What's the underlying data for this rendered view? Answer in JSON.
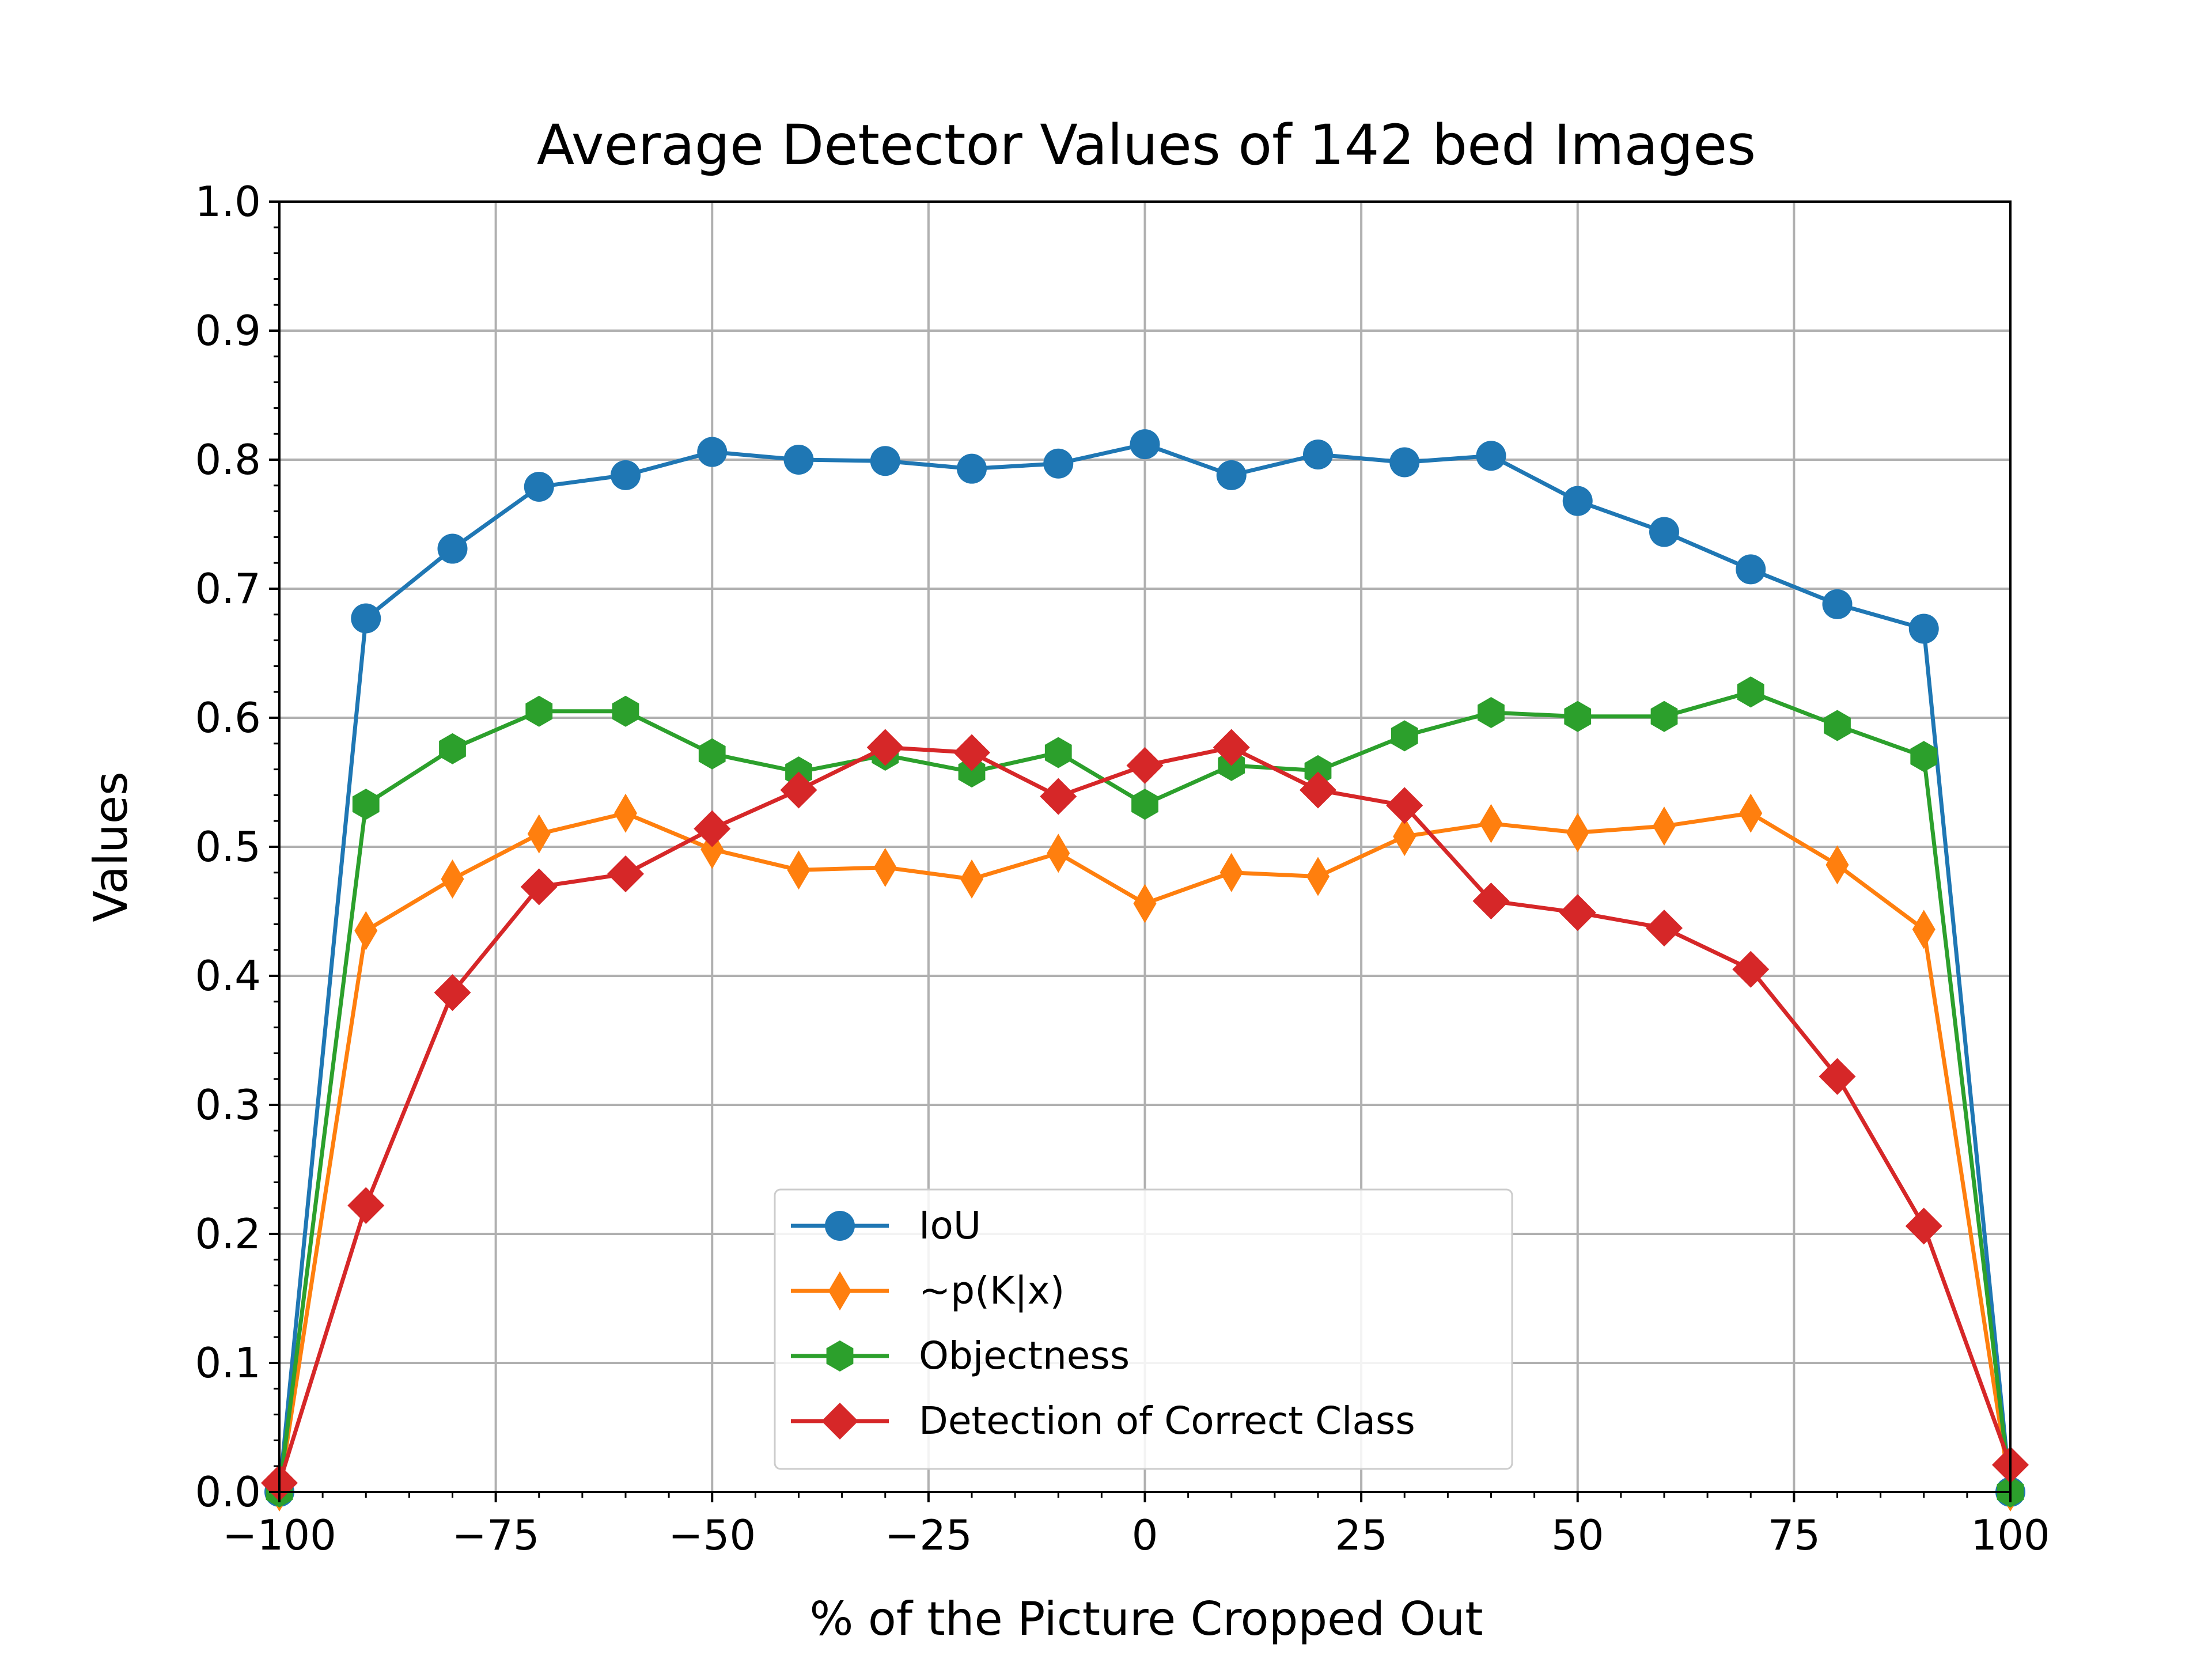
{
  "chart_data": {
    "type": "line",
    "title": "Average Detector Values of 142 bed Images",
    "xlabel": "% of the Picture Cropped Out",
    "ylabel": "Values",
    "xlim": [
      -100,
      100
    ],
    "ylim": [
      0.0,
      1.0
    ],
    "grid": true,
    "legend_position": "bottom-center",
    "x_ticks": [
      -100,
      -75,
      -50,
      -25,
      0,
      25,
      50,
      75,
      100
    ],
    "x_tick_labels": [
      "−100",
      "−75",
      "−50",
      "−25",
      "0",
      "25",
      "50",
      "75",
      "100"
    ],
    "y_ticks": [
      0.0,
      0.1,
      0.2,
      0.3,
      0.4,
      0.5,
      0.6,
      0.7,
      0.8,
      0.9,
      1.0
    ],
    "y_tick_labels": [
      "0.0",
      "0.1",
      "0.2",
      "0.3",
      "0.4",
      "0.5",
      "0.6",
      "0.7",
      "0.8",
      "0.9",
      "1.0"
    ],
    "x": [
      -100,
      -90,
      -80,
      -70,
      -60,
      -50,
      -40,
      -30,
      -20,
      -10,
      0,
      10,
      20,
      30,
      40,
      50,
      60,
      70,
      80,
      90,
      100
    ],
    "series": [
      {
        "name": "IoU",
        "color": "#1f77b4",
        "marker": "circle",
        "values": [
          0.0,
          0.677,
          0.731,
          0.779,
          0.788,
          0.806,
          0.8,
          0.799,
          0.793,
          0.797,
          0.812,
          0.788,
          0.804,
          0.798,
          0.803,
          0.768,
          0.744,
          0.715,
          0.688,
          0.669,
          0.0
        ]
      },
      {
        "name": "~p(K|x)",
        "color": "#ff7f0e",
        "marker": "thin-diamond",
        "values": [
          0.0,
          0.435,
          0.475,
          0.51,
          0.526,
          0.498,
          0.482,
          0.484,
          0.475,
          0.495,
          0.456,
          0.48,
          0.477,
          0.508,
          0.518,
          0.511,
          0.516,
          0.526,
          0.486,
          0.436,
          0.0
        ]
      },
      {
        "name": "Objectness",
        "color": "#2ca02c",
        "marker": "hexagon",
        "values": [
          0.0,
          0.533,
          0.576,
          0.605,
          0.605,
          0.572,
          0.558,
          0.571,
          0.558,
          0.573,
          0.533,
          0.563,
          0.559,
          0.586,
          0.604,
          0.601,
          0.601,
          0.62,
          0.594,
          0.57,
          0.0
        ]
      },
      {
        "name": "Detection of Correct Class",
        "color": "#d62728",
        "marker": "diamond",
        "values": [
          0.007,
          0.222,
          0.387,
          0.469,
          0.479,
          0.514,
          0.544,
          0.577,
          0.573,
          0.539,
          0.563,
          0.577,
          0.544,
          0.532,
          0.458,
          0.449,
          0.437,
          0.405,
          0.322,
          0.206,
          0.021
        ]
      }
    ]
  }
}
